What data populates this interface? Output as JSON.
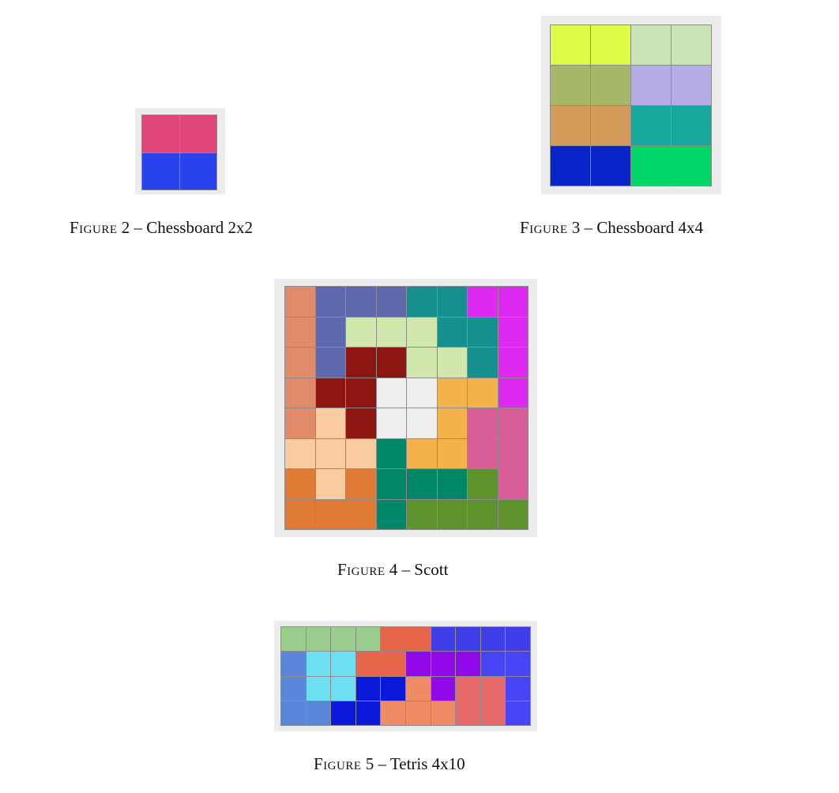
{
  "figures": [
    {
      "id": "fig2",
      "figure_word": "Figure",
      "number": "2",
      "separator": "–",
      "title": "Chessboard 2x2",
      "rows": 2,
      "cols": 2,
      "colors": [
        [
          "#e0457c",
          "#e0457c"
        ],
        [
          "#2a41ee",
          "#2a41ee"
        ]
      ]
    },
    {
      "id": "fig3",
      "figure_word": "Figure",
      "number": "3",
      "separator": "–",
      "title": "Chessboard 4x4",
      "rows": 4,
      "cols": 4,
      "colors": [
        [
          "#dcfb44",
          "#dcfb44",
          "#c9e5b5",
          "#c9e5b5"
        ],
        [
          "#a7b76a",
          "#a7b76a",
          "#b5ade5",
          "#b5ade5"
        ],
        [
          "#d59b5b",
          "#d59b5b",
          "#17a89c",
          "#17a89c"
        ],
        [
          "#0725c9",
          "#0725c9",
          "#00d668",
          "#00d668"
        ]
      ]
    },
    {
      "id": "fig4",
      "figure_word": "Figure",
      "number": "4",
      "separator": "–",
      "title": "Scott",
      "rows": 8,
      "cols": 8,
      "colors": [
        [
          "#e08b69",
          "#5d68ae",
          "#5d68ae",
          "#5d68ae",
          "#16908f",
          "#16908f",
          "#dd29f1",
          "#dd29f1"
        ],
        [
          "#e08b69",
          "#5d68ae",
          "#d2e7ad",
          "#d2e7ad",
          "#d2e7ad",
          "#16908f",
          "#16908f",
          "#dd29f1"
        ],
        [
          "#e08b69",
          "#5d68ae",
          "#8e1612",
          "#8e1612",
          "#d2e7ad",
          "#d2e7ad",
          "#16908f",
          "#dd29f1"
        ],
        [
          "#e08b69",
          "#8e1612",
          "#8e1612",
          "#eeeeee",
          "#eeeeee",
          "#f4b24c",
          "#f4b24c",
          "#dd29f1"
        ],
        [
          "#e08b69",
          "#f8cc9f",
          "#8e1612",
          "#eeeeee",
          "#eeeeee",
          "#f4b24c",
          "#d95e98",
          "#d95e98"
        ],
        [
          "#f8cc9f",
          "#f8cc9f",
          "#f8cc9f",
          "#018768",
          "#f4b24c",
          "#f4b24c",
          "#d95e98",
          "#d95e98"
        ],
        [
          "#df7b35",
          "#f8cc9f",
          "#df7b35",
          "#018768",
          "#018768",
          "#018768",
          "#5d942e",
          "#d95e98"
        ],
        [
          "#df7b35",
          "#df7b35",
          "#df7b35",
          "#018768",
          "#5d942e",
          "#5d942e",
          "#5d942e",
          "#5d942e"
        ]
      ]
    },
    {
      "id": "fig5",
      "figure_word": "Figure",
      "number": "5",
      "separator": "–",
      "title": "Tetris 4x10",
      "rows": 4,
      "cols": 10,
      "colors": [
        [
          "#9bcd8f",
          "#9bcd8f",
          "#9bcd8f",
          "#9bcd8f",
          "#e76548",
          "#e76548",
          "#403ee9",
          "#403ee9",
          "#403ee9",
          "#403ee9"
        ],
        [
          "#5a86d9",
          "#6ce0f2",
          "#6ce0f2",
          "#e76548",
          "#e76548",
          "#900ae9",
          "#900ae9",
          "#900ae9",
          "#4645f5",
          "#4645f5"
        ],
        [
          "#5a86d9",
          "#6ce0f2",
          "#6ce0f2",
          "#0a18d9",
          "#0a18d9",
          "#ef8c66",
          "#900ae9",
          "#e66a6a",
          "#e66a6a",
          "#4645f5"
        ],
        [
          "#5a86d9",
          "#5a86d9",
          "#0a18d9",
          "#0a18d9",
          "#ef8c66",
          "#ef8c66",
          "#ef8c66",
          "#e66a6a",
          "#e66a6a",
          "#4645f5"
        ]
      ]
    }
  ]
}
